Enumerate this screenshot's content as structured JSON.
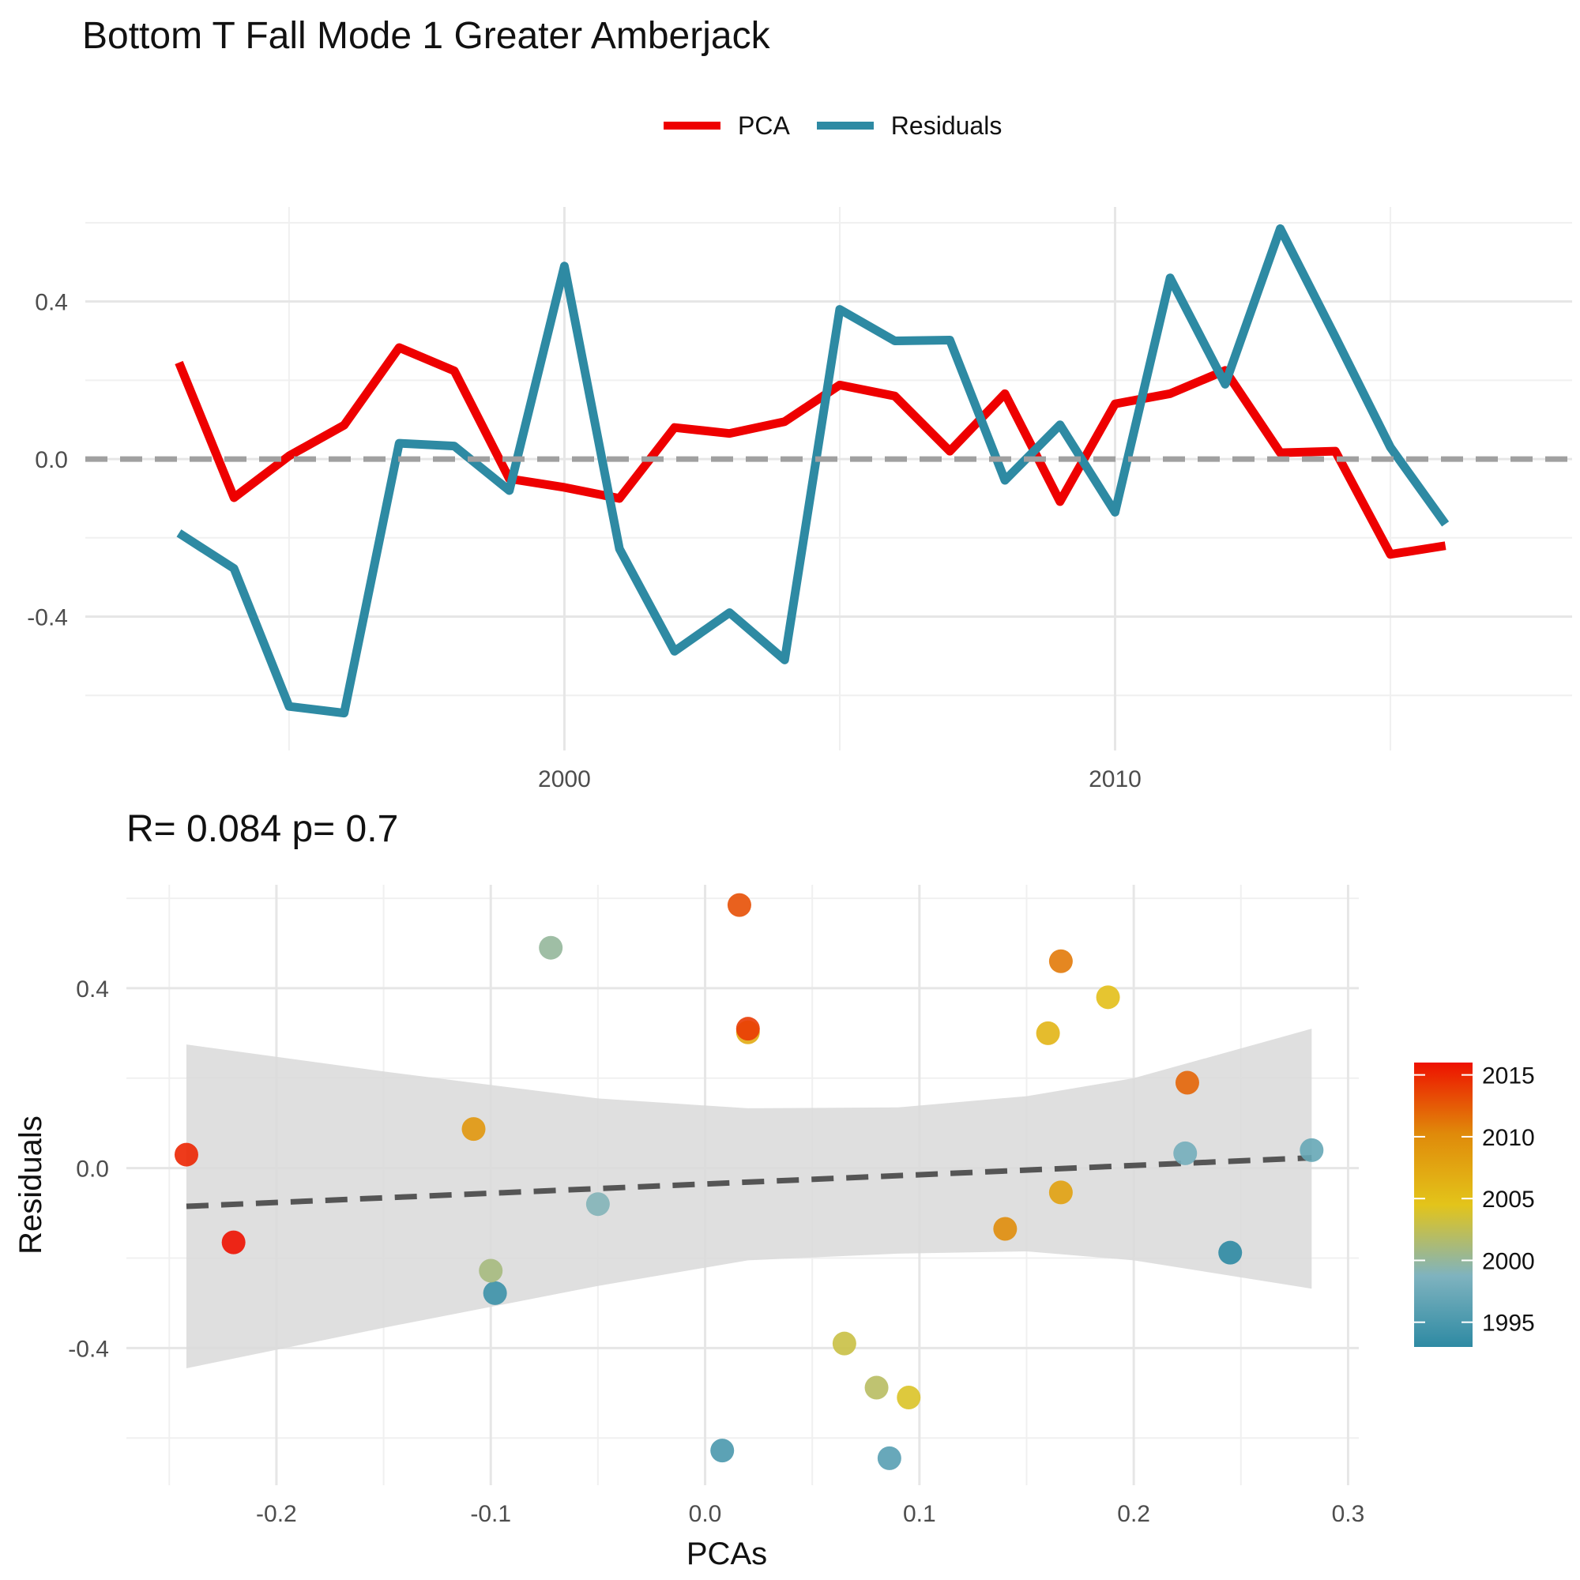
{
  "title": "Bottom T Fall Mode 1 Greater Amberjack",
  "subtitle": "R= 0.084  p= 0.7",
  "legend": {
    "pca_label": "PCA",
    "residuals_label": "Residuals",
    "pca_color": "#ee0000",
    "residuals_color": "#2e8aa3"
  },
  "chart_data": [
    {
      "type": "line",
      "x": [
        1993,
        1994,
        1995,
        1996,
        1997,
        1998,
        1999,
        2000,
        2001,
        2002,
        2003,
        2004,
        2005,
        2006,
        2007,
        2008,
        2009,
        2010,
        2011,
        2012,
        2013,
        2014,
        2015,
        2016
      ],
      "series": [
        {
          "name": "PCA",
          "color": "#ee0000",
          "values": [
            0.245,
            -0.098,
            0.008,
            0.086,
            0.283,
            0.224,
            -0.05,
            -0.072,
            -0.1,
            0.08,
            0.065,
            0.095,
            0.188,
            0.16,
            0.02,
            0.166,
            -0.108,
            0.14,
            0.166,
            0.225,
            0.016,
            0.02,
            -0.242,
            -0.22
          ]
        },
        {
          "name": "Residuals",
          "color": "#2e8aa3",
          "values": [
            -0.188,
            -0.278,
            -0.628,
            -0.645,
            0.04,
            0.033,
            -0.08,
            0.49,
            -0.228,
            -0.488,
            -0.39,
            -0.51,
            0.38,
            0.3,
            0.302,
            -0.054,
            0.087,
            -0.135,
            0.46,
            0.19,
            0.585,
            0.31,
            0.03,
            -0.165
          ]
        }
      ],
      "hline": 0,
      "hline_color": "#a0a0a0",
      "xlim": [
        1991.3,
        2018.3
      ],
      "ylim": [
        -0.74,
        0.64
      ],
      "x_ticks": [
        2000,
        2010
      ],
      "y_ticks": [
        -0.4,
        0.0,
        0.4
      ],
      "y_tick_labels": [
        "-0.4",
        "0.0",
        "0.4"
      ],
      "grid": true,
      "legend_position": "top"
    },
    {
      "type": "scatter",
      "xlabel": "PCAs",
      "ylabel": "Residuals",
      "xlim": [
        -0.27,
        0.305
      ],
      "ylim": [
        -0.705,
        0.63
      ],
      "x_ticks": [
        -0.2,
        -0.1,
        0.0,
        0.1,
        0.2,
        0.3
      ],
      "x_tick_labels": [
        "-0.2",
        "-0.1",
        "0.0",
        "0.1",
        "0.2",
        "0.3"
      ],
      "y_ticks": [
        -0.4,
        0.0,
        0.4
      ],
      "y_tick_labels": [
        "-0.4",
        "0.0",
        "0.4"
      ],
      "grid": true,
      "points": [
        {
          "x": 0.245,
          "y": -0.188,
          "year": 1993
        },
        {
          "x": -0.098,
          "y": -0.278,
          "year": 1994
        },
        {
          "x": 0.008,
          "y": -0.628,
          "year": 1995
        },
        {
          "x": 0.086,
          "y": -0.645,
          "year": 1996
        },
        {
          "x": 0.283,
          "y": 0.04,
          "year": 1997
        },
        {
          "x": 0.224,
          "y": 0.033,
          "year": 1998
        },
        {
          "x": -0.05,
          "y": -0.08,
          "year": 1999
        },
        {
          "x": -0.072,
          "y": 0.49,
          "year": 2000
        },
        {
          "x": -0.1,
          "y": -0.228,
          "year": 2001
        },
        {
          "x": 0.08,
          "y": -0.488,
          "year": 2002
        },
        {
          "x": 0.065,
          "y": -0.39,
          "year": 2003
        },
        {
          "x": 0.095,
          "y": -0.51,
          "year": 2004
        },
        {
          "x": 0.188,
          "y": 0.38,
          "year": 2005
        },
        {
          "x": 0.16,
          "y": 0.3,
          "year": 2006
        },
        {
          "x": 0.02,
          "y": 0.302,
          "year": 2007
        },
        {
          "x": 0.166,
          "y": -0.054,
          "year": 2008
        },
        {
          "x": -0.108,
          "y": 0.087,
          "year": 2009
        },
        {
          "x": 0.14,
          "y": -0.135,
          "year": 2010
        },
        {
          "x": 0.166,
          "y": 0.46,
          "year": 2011
        },
        {
          "x": 0.225,
          "y": 0.19,
          "year": 2012
        },
        {
          "x": 0.016,
          "y": 0.585,
          "year": 2013
        },
        {
          "x": 0.02,
          "y": 0.31,
          "year": 2014
        },
        {
          "x": -0.242,
          "y": 0.03,
          "year": 2015
        },
        {
          "x": -0.22,
          "y": -0.165,
          "year": 2016
        }
      ],
      "fit_line": {
        "x": [
          -0.242,
          0.283
        ],
        "y": [
          -0.085,
          0.023
        ],
        "color": "#555555",
        "dashed": true
      },
      "confidence_band": {
        "x": [
          -0.242,
          -0.15,
          -0.05,
          0.02,
          0.09,
          0.15,
          0.2,
          0.283
        ],
        "lower": [
          -0.445,
          -0.355,
          -0.262,
          -0.205,
          -0.19,
          -0.185,
          -0.205,
          -0.268
        ],
        "upper": [
          0.275,
          0.215,
          0.155,
          0.133,
          0.135,
          0.16,
          0.2,
          0.31
        ],
        "color": "#d9d9d9"
      },
      "colorbar": {
        "title": "",
        "range": [
          1993,
          2016
        ],
        "ticks": [
          1995,
          2000,
          2005,
          2010,
          2015
        ],
        "tick_labels": [
          "1995",
          "2000",
          "2005",
          "2010",
          "2015"
        ],
        "colors": [
          "#2e8aa3",
          "#7fb3bf",
          "#e3c41a",
          "#e08a0a",
          "#ee1100"
        ],
        "position": "right"
      }
    }
  ]
}
